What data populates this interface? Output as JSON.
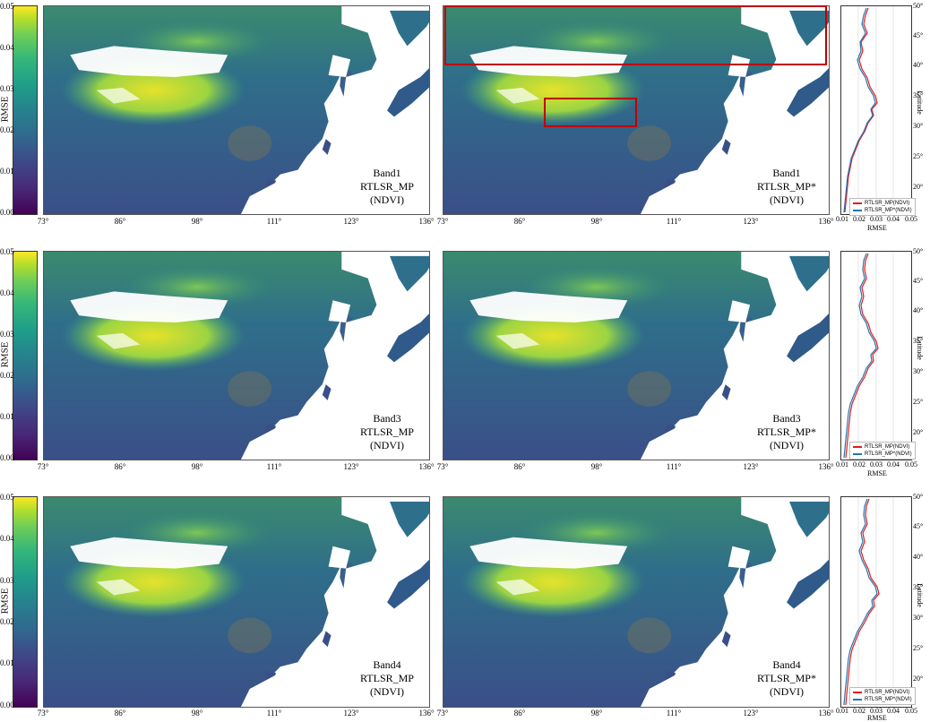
{
  "colorbar": {
    "label": "RMSE",
    "ticks": [
      "0.05",
      "0.04",
      "0.03",
      "0.02",
      "0.01",
      "0.00"
    ],
    "colormap": [
      "#440154",
      "#3e4989",
      "#26828e",
      "#35b779",
      "#fde725"
    ]
  },
  "longitude_ticks": [
    "73°",
    "86°",
    "98°",
    "111°",
    "123°",
    "136°"
  ],
  "latitude_ticks": [
    "50°",
    "45°",
    "40°",
    "35°",
    "30°",
    "25°",
    "20°"
  ],
  "profile_axis": {
    "x_label": "RMSE",
    "y_label": "Latitude",
    "x_ticks": [
      "0.01",
      "0.02",
      "0.03",
      "0.04",
      "0.05"
    ]
  },
  "legend_lines": {
    "rtlsr_mp_color": "#e8191c",
    "rtlsr_mp_star_color": "#1f77b4"
  },
  "rows": [
    {
      "left": {
        "band": "Band1",
        "model": "RTLSR_MP",
        "index": "(NDVI)"
      },
      "right": {
        "band": "Band1",
        "model": "RTLSR_MP*",
        "index": "(NDVI)"
      },
      "legend": [
        "RTLSR_MP(NDVI)",
        "RTLSR_MP*(NDVI)"
      ]
    },
    {
      "left": {
        "band": "Band3",
        "model": "RTLSR_MP",
        "index": "(NDVI)"
      },
      "right": {
        "band": "Band3",
        "model": "RTLSR_MP*",
        "index": "(NDVI)"
      },
      "legend": [
        "RTLSR_MP(NDVI)",
        "RTLSR_MP*(NDVI)"
      ]
    },
    {
      "left": {
        "band": "Band4",
        "model": "RTLSR_MP",
        "index": "(NDVI)"
      },
      "right": {
        "band": "Band4",
        "model": "RTLSR_MP*",
        "index": "(NDVI)"
      },
      "legend": [
        "RTLSR_MP(NDVI)",
        "RTLSR_MP*(NDVI)"
      ]
    }
  ],
  "highlight_color": "#c00000"
}
